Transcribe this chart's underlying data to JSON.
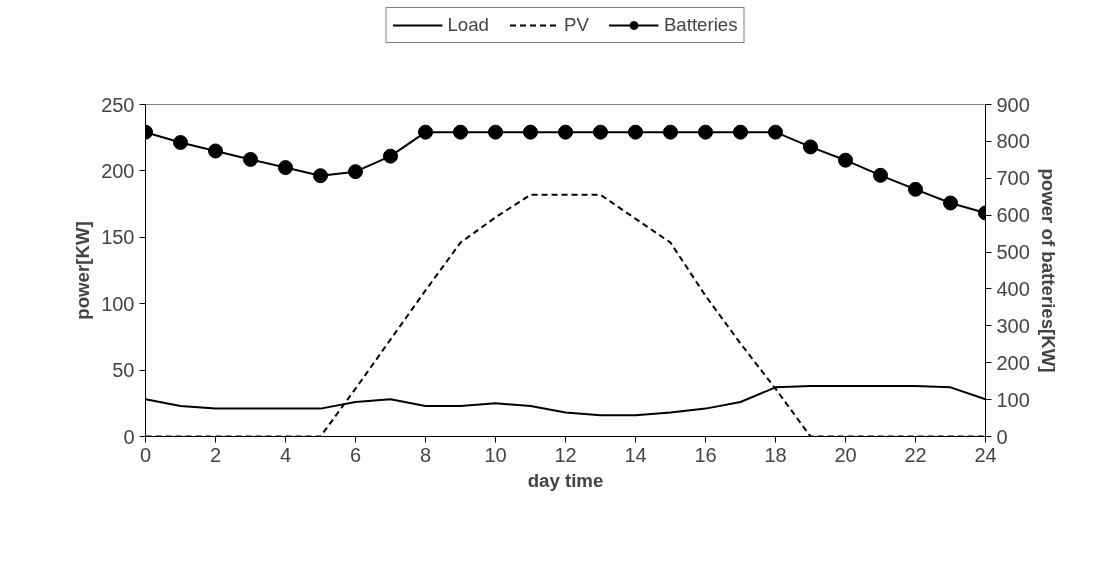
{
  "chart_data": {
    "type": "line",
    "xlabel": "day time",
    "ylabel": "power[KW]",
    "y2label": "power of batteries[KW]",
    "x": [
      0,
      1,
      2,
      3,
      4,
      5,
      6,
      7,
      8,
      9,
      10,
      11,
      12,
      13,
      14,
      15,
      16,
      17,
      18,
      19,
      20,
      21,
      22,
      23,
      24
    ],
    "series": [
      {
        "name": "Load",
        "color": "#000000",
        "line_style": "solid",
        "marker": "none",
        "values": [
          28,
          23,
          21,
          21,
          21,
          21,
          26,
          28,
          23,
          23,
          25,
          23,
          18,
          16,
          16,
          18,
          21,
          26,
          37,
          38,
          38,
          38,
          38,
          37,
          28
        ]
      },
      {
        "name": "PV",
        "color": "#000000",
        "line_style": "dashed",
        "marker": "none",
        "values": [
          0,
          0,
          0,
          0,
          0,
          0,
          36,
          73,
          110,
          146,
          165,
          182,
          182,
          182,
          164,
          146,
          106,
          70,
          36,
          0,
          0,
          0,
          0,
          0,
          0
        ]
      },
      {
        "name": "Batteries",
        "color": "#000000",
        "line_style": "solid",
        "marker": "circle",
        "axis": "y2",
        "values": [
          825,
          797,
          774,
          751,
          729,
          707,
          718,
          760,
          825,
          825,
          825,
          825,
          825,
          825,
          825,
          825,
          825,
          825,
          825,
          785,
          749,
          708,
          670,
          633,
          606
        ]
      }
    ],
    "xlim": [
      0,
      24
    ],
    "xticks": [
      0,
      2,
      4,
      6,
      8,
      10,
      12,
      14,
      16,
      18,
      20,
      22,
      24
    ],
    "ylim": [
      0,
      250
    ],
    "yticks": [
      0,
      50,
      100,
      150,
      200,
      250
    ],
    "y2lim": [
      0,
      900
    ],
    "y2ticks": [
      0,
      100,
      200,
      300,
      400,
      500,
      600,
      700,
      800,
      900
    ],
    "grid": false,
    "legend": "top"
  }
}
